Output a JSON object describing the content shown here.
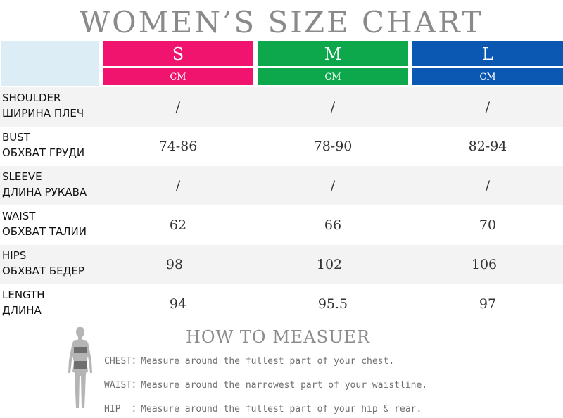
{
  "title": "WOMEN’S SIZE CHART",
  "sizes": [
    {
      "label": "S",
      "unit": "CM",
      "color": "#f0146e"
    },
    {
      "label": "M",
      "unit": "CM",
      "color": "#0ea84c"
    },
    {
      "label": "L",
      "unit": "CM",
      "color": "#0a58b2"
    }
  ],
  "rows": [
    {
      "en": "SHOULDER",
      "ru": "ШИРИНА ПЛЕЧ",
      "values": [
        "/",
        "/",
        "/"
      ]
    },
    {
      "en": "BUST",
      "ru": "ОБХВАТ ГРУДИ",
      "values": [
        "74-86",
        "78-90",
        "82-94"
      ]
    },
    {
      "en": "SLEEVE",
      "ru": "ДЛИНА РУКАВА",
      "values": [
        "/",
        "/",
        "/"
      ]
    },
    {
      "en": "WAIST",
      "ru": "ОБХВАТ ТАЛИИ",
      "values": [
        "62",
        "66",
        "70"
      ]
    },
    {
      "en": "HIPS",
      "ru": "ОБХВАТ БЕДЕР",
      "values": [
        "98",
        "102",
        "106"
      ]
    },
    {
      "en": "LENGTH",
      "ru": "ДЛИНА",
      "values": [
        "94",
        "95.5",
        "97"
      ]
    }
  ],
  "measure": {
    "title": "HOW TO MEASUER",
    "lines": [
      "CHEST：Measure around the fullest part of your chest.",
      "WAIST：Measure around the narrowest part of your waistline.",
      "HIP  ：Measure around the fullest part of your hip & rear."
    ]
  },
  "figure_icon": "woman-silhouette-icon"
}
